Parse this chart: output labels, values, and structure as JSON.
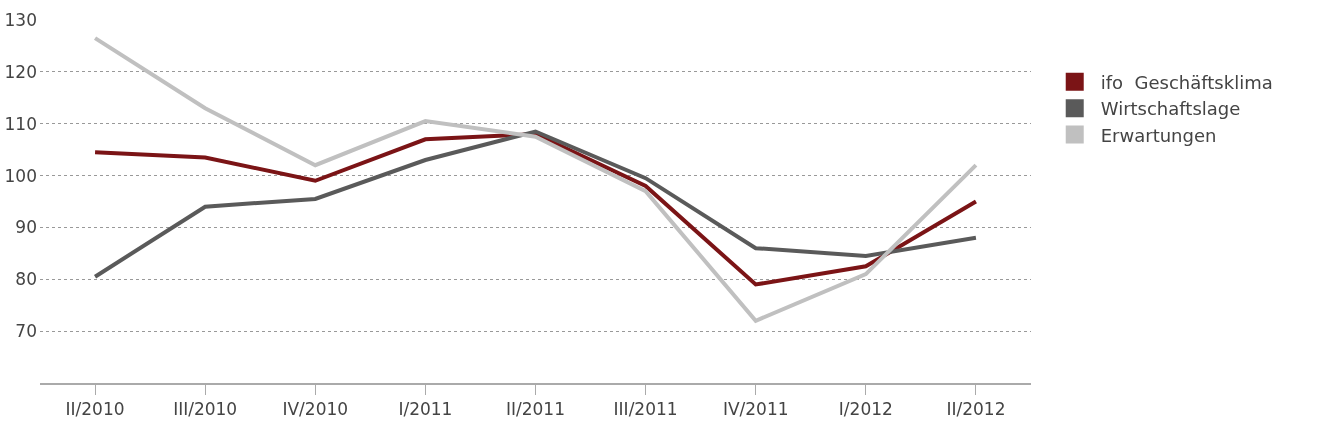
{
  "chart_data": {
    "type": "line",
    "categories": [
      "II/2010",
      "III/2010",
      "IV/2010",
      "I/2011",
      "II/2011",
      "III/2011",
      "IV/2011",
      "I/2012",
      "II/2012"
    ],
    "series": [
      {
        "name": "ifo  Geschäftsklima",
        "color": "#7b1416",
        "values": [
          104.5,
          103.5,
          99,
          107,
          108,
          98,
          79,
          82.5,
          95
        ]
      },
      {
        "name": "Wirtschaftslage",
        "color": "#5a5a5a",
        "values": [
          80.5,
          94,
          95.5,
          103,
          108.5,
          99.5,
          86,
          84.5,
          88
        ]
      },
      {
        "name": "Erwartungen",
        "color": "#c0c0c0",
        "values": [
          126.5,
          113,
          102,
          110.5,
          107.5,
          97,
          72,
          81,
          102
        ]
      }
    ],
    "ylim": [
      60,
      130
    ],
    "yticks": [
      {
        "value": 60,
        "label": null
      },
      70,
      80,
      90,
      100,
      110,
      120,
      130
    ],
    "grid": "y",
    "legend": "right",
    "marker": "none",
    "line_style": "solid"
  }
}
